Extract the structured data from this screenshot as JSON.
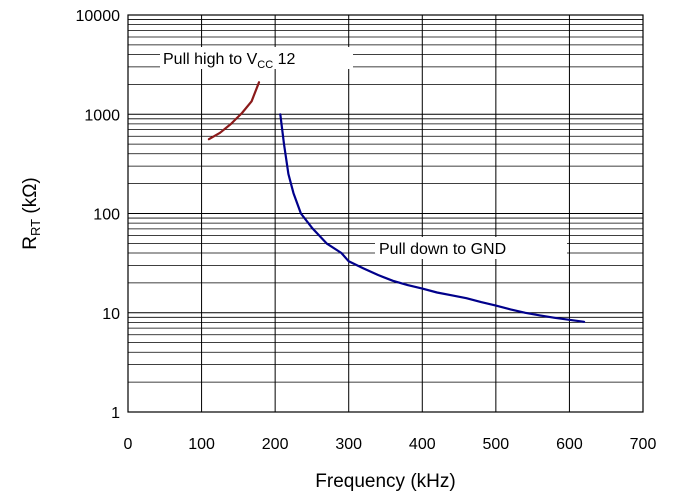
{
  "chart_data": {
    "type": "line",
    "xlabel": "Frequency (kHz)",
    "ylabel_main": "R",
    "ylabel_sub": "RT",
    "ylabel_unit": " (kΩ)",
    "x_scale": "linear",
    "y_scale": "log",
    "xlim": [
      0,
      700
    ],
    "ylim": [
      1,
      10000
    ],
    "x_ticks": [
      "0",
      "100",
      "200",
      "300",
      "400",
      "500",
      "600",
      "700"
    ],
    "y_ticks": [
      "1",
      "10",
      "100",
      "1000",
      "10000"
    ],
    "grid": true,
    "series": [
      {
        "color": "#8b1a1a",
        "x": [
          110,
          125,
          140,
          155,
          168,
          178
        ],
        "y": [
          560,
          650,
          800,
          1030,
          1350,
          2100
        ]
      },
      {
        "color": "#00008b",
        "x": [
          207,
          212,
          218,
          225,
          235,
          250,
          270,
          290,
          300,
          320,
          340,
          360,
          380,
          400,
          420,
          440,
          460,
          480,
          500,
          520,
          540,
          560,
          580,
          600,
          620
        ],
        "y": [
          1000,
          500,
          250,
          160,
          100,
          72,
          50,
          40,
          33,
          28,
          24,
          21,
          19,
          17.5,
          16,
          15,
          14,
          12.8,
          11.8,
          10.8,
          10,
          9.4,
          8.9,
          8.5,
          8.1
        ]
      }
    ],
    "annotations": [
      {
        "text_main": "Pull high to V",
        "text_sub": "CC",
        "text_tail": " 12"
      },
      {
        "text": "Pull down to GND"
      }
    ]
  }
}
